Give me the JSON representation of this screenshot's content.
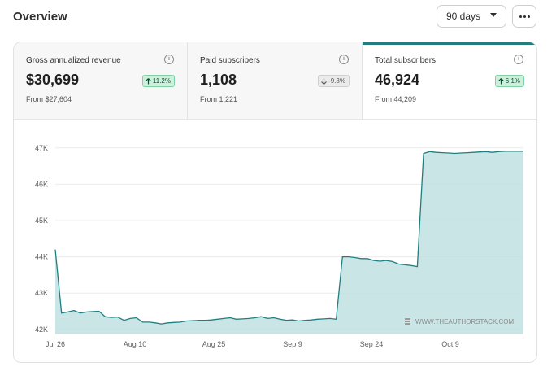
{
  "header": {
    "title": "Overview",
    "range_value": "90 days",
    "more_icon": "ellipsis-horizontal-icon"
  },
  "metrics": [
    {
      "label": "Gross annualized revenue",
      "value": "$30,699",
      "change": "11.2%",
      "trend": "up",
      "from": "From $27,604",
      "info_icon": "info-icon"
    },
    {
      "label": "Paid subscribers",
      "value": "1,108",
      "change": "-9.3%",
      "trend": "down",
      "from": "From 1,221",
      "info_icon": "info-icon"
    },
    {
      "label": "Total subscribers",
      "value": "46,924",
      "change": "6.1%",
      "trend": "up",
      "from": "From 44,209",
      "info_icon": "info-icon",
      "selected": true
    }
  ],
  "colors": {
    "accent": "#1f7f80",
    "area_fill": "#bfe0e2",
    "up_badge": "#cdf0dc",
    "down_badge": "#ebebeb"
  },
  "chart_data": {
    "type": "area",
    "watermark": "WWW.THEAUTHORSTACK.COM",
    "x_ticks": [
      "Jul 26",
      "Aug 10",
      "Aug 25",
      "Sep 9",
      "Sep 24",
      "Oct 9"
    ],
    "y_ticks": [
      "47K",
      "46K",
      "45K",
      "44K",
      "43K",
      "42K"
    ],
    "ylim": [
      41800,
      47100
    ],
    "series": [
      {
        "values": [
          44200,
          42450,
          42480,
          42520,
          42450,
          42480,
          42490,
          42500,
          42350,
          42330,
          42340,
          42250,
          42300,
          42320,
          42200,
          42200,
          42180,
          42150,
          42180,
          42190,
          42200,
          42230,
          42240,
          42250,
          42250,
          42260,
          42280,
          42300,
          42320,
          42280,
          42290,
          42300,
          42320,
          42350,
          42300,
          42320,
          42280,
          42250,
          42260,
          42230,
          42250,
          42260,
          42280,
          42290,
          42300,
          42280,
          44000,
          44000,
          43980,
          43950,
          43950,
          43900,
          43880,
          43900,
          43870,
          43800,
          43780,
          43760,
          43730,
          46850,
          46900,
          46880,
          46870,
          46860,
          46850,
          46860,
          46870,
          46880,
          46890,
          46900,
          46880,
          46900,
          46910,
          46910,
          46910,
          46910
        ]
      }
    ]
  }
}
